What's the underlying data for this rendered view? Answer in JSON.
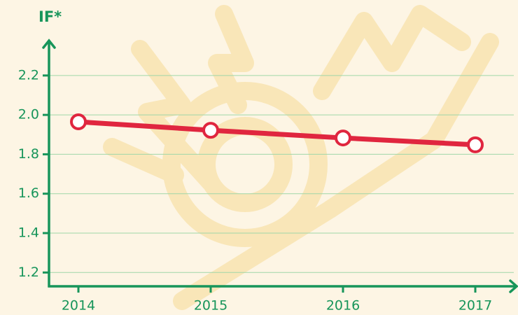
{
  "chart_data": {
    "type": "line",
    "title": "IF*",
    "categories": [
      "2014",
      "2015",
      "2016",
      "2017"
    ],
    "values": [
      1.965,
      1.922,
      1.883,
      1.848
    ],
    "color": "#e0263f",
    "axis_color": "#17955a",
    "ylim": [
      1.13,
      2.37
    ],
    "yticks": [
      {
        "value": 1.2,
        "label": "1.2"
      },
      {
        "value": 1.4,
        "label": "1.4"
      },
      {
        "value": 1.6,
        "label": "1.6"
      },
      {
        "value": 1.8,
        "label": "1.8"
      },
      {
        "value": 2,
        "label": "2.0"
      },
      {
        "value": 2.2,
        "label": "2.2"
      }
    ],
    "grid": true
  }
}
